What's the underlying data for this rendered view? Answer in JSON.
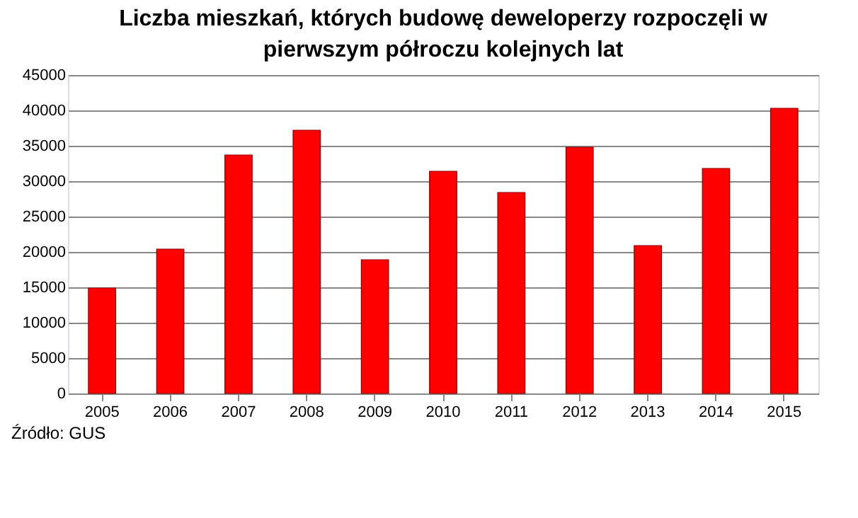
{
  "chart_data": {
    "type": "bar",
    "title": "Liczba mieszkań, których budowę deweloperzy rozpoczęli w pierwszym półroczu kolejnych lat",
    "categories": [
      "2005",
      "2006",
      "2007",
      "2008",
      "2009",
      "2010",
      "2011",
      "2012",
      "2013",
      "2014",
      "2015"
    ],
    "values": [
      14900,
      20400,
      33700,
      37200,
      18900,
      31400,
      28400,
      34800,
      20900,
      31800,
      40300
    ],
    "color": "#ff0000",
    "ylim": [
      0,
      45000
    ],
    "yticks": [
      0,
      5000,
      10000,
      15000,
      20000,
      25000,
      30000,
      35000,
      40000,
      45000
    ],
    "grid": "y",
    "annotations": [
      "Źródło: GUS"
    ]
  }
}
